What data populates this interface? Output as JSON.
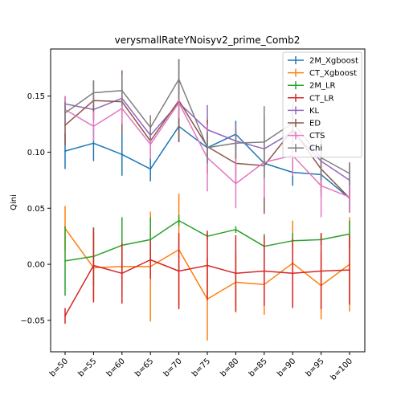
{
  "chart_data": {
    "type": "line",
    "title": "verysmallRateYNoisyv2_prime_Comb2",
    "xlabel": "",
    "ylabel": "Qini",
    "categories": [
      "b=50",
      "b=55",
      "b=60",
      "b=65",
      "b=70",
      "b=75",
      "b=80",
      "b=85",
      "b=90",
      "b=95",
      "b=100"
    ],
    "ylim": [
      -0.078,
      0.192
    ],
    "yticks": [
      -0.05,
      0.0,
      0.05,
      0.1,
      0.15
    ],
    "ytick_labels": [
      "−0.05",
      "0.00",
      "0.05",
      "0.10",
      "0.15"
    ],
    "grid": false,
    "legend_position": "top-right",
    "error_bars": true,
    "series": [
      {
        "name": "2M_Xgboost",
        "color": "#1f77b4",
        "values": [
          0.101,
          0.108,
          0.098,
          0.085,
          0.123,
          0.104,
          0.116,
          0.09,
          0.082,
          0.08,
          0.059
        ],
        "errors": [
          0.016,
          0.016,
          0.019,
          0.011,
          0.014,
          0.012,
          0.012,
          0.012,
          0.012,
          0.01,
          0.011
        ]
      },
      {
        "name": "CT_Xgboost",
        "color": "#ff7f0e",
        "values": [
          0.032,
          -0.003,
          -0.002,
          -0.002,
          0.013,
          -0.031,
          -0.016,
          -0.018,
          0.001,
          -0.019,
          0.0
        ],
        "errors": [
          0.02,
          0.03,
          0.02,
          0.049,
          0.05,
          0.037,
          0.027,
          0.027,
          0.038,
          0.03,
          0.042
        ]
      },
      {
        "name": "2M_LR",
        "color": "#2ca02c",
        "values": [
          0.003,
          0.007,
          0.017,
          0.022,
          0.039,
          0.025,
          0.031,
          0.016,
          0.021,
          0.022,
          0.027
        ],
        "errors": [
          0.031,
          0.026,
          0.025,
          0.02,
          0.005,
          0.003,
          0.003,
          0.011,
          0.007,
          0.005,
          0.012
        ]
      },
      {
        "name": "CT_LR",
        "color": "#d62728",
        "values": [
          -0.046,
          -0.001,
          -0.008,
          0.004,
          -0.006,
          -0.001,
          -0.008,
          -0.006,
          -0.008,
          -0.006,
          -0.005
        ],
        "errors": [
          0.007,
          0.033,
          0.027,
          0.017,
          0.034,
          0.031,
          0.034,
          0.031,
          0.031,
          0.034,
          0.031
        ]
      },
      {
        "name": "KL",
        "color": "#9467bd",
        "values": [
          0.143,
          0.138,
          0.148,
          0.115,
          0.144,
          0.12,
          0.11,
          0.103,
          0.118,
          0.092,
          0.075
        ],
        "errors": [
          0.007,
          0.01,
          0.013,
          0.01,
          0.015,
          0.022,
          0.015,
          0.017,
          0.018,
          0.028,
          0.015
        ]
      },
      {
        "name": "ED",
        "color": "#8c564b",
        "values": [
          0.124,
          0.146,
          0.145,
          0.11,
          0.146,
          0.105,
          0.09,
          0.088,
          0.12,
          0.085,
          0.059
        ],
        "errors": [
          0.018,
          0.018,
          0.028,
          0.013,
          0.037,
          0.024,
          0.018,
          0.043,
          0.015,
          0.025,
          0.013
        ]
      },
      {
        "name": "CTS",
        "color": "#e377c2",
        "values": [
          0.138,
          0.123,
          0.139,
          0.107,
          0.144,
          0.095,
          0.072,
          0.091,
          0.097,
          0.07,
          0.06
        ],
        "errors": [
          0.012,
          0.013,
          0.014,
          0.013,
          0.014,
          0.03,
          0.022,
          0.031,
          0.018,
          0.028,
          0.014
        ]
      },
      {
        "name": "Chi",
        "color": "#7f7f7f",
        "values": [
          0.135,
          0.153,
          0.155,
          0.122,
          0.165,
          0.104,
          0.108,
          0.109,
          0.126,
          0.095,
          0.081
        ],
        "errors": [
          0.01,
          0.011,
          0.014,
          0.011,
          0.018,
          0.014,
          0.012,
          0.032,
          0.018,
          0.02,
          0.01
        ]
      }
    ]
  }
}
